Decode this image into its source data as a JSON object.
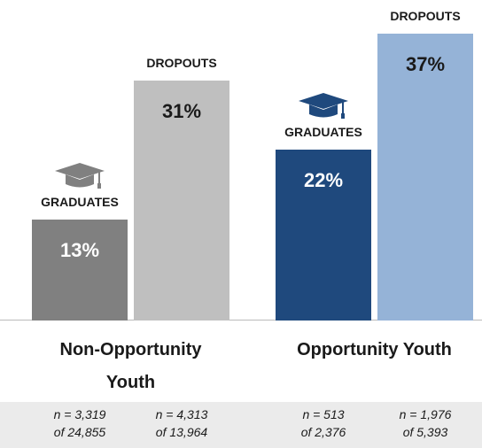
{
  "chart_data": {
    "type": "bar",
    "categories": [
      "Non-Opportunity Youth",
      "Opportunity Youth"
    ],
    "series": [
      {
        "name": "GRADUATES",
        "colors": [
          "#808080",
          "#1f497d"
        ],
        "label_color": "#ffffff",
        "values": [
          13,
          22
        ],
        "value_labels": [
          "13%",
          "22%"
        ],
        "notes": [
          [
            "n = 3,319",
            "of 24,855"
          ],
          [
            "n = 513",
            "of 2,376"
          ]
        ]
      },
      {
        "name": "DROPOUTS",
        "colors": [
          "#bfbfbf",
          "#95b3d7"
        ],
        "label_color": "#1a1a1a",
        "values": [
          31,
          37
        ],
        "value_labels": [
          "31%",
          "37%"
        ],
        "notes": [
          [
            "n = 4,313",
            "of 13,964"
          ],
          [
            "n = 1,976",
            "of 5,393"
          ]
        ]
      }
    ]
  }
}
